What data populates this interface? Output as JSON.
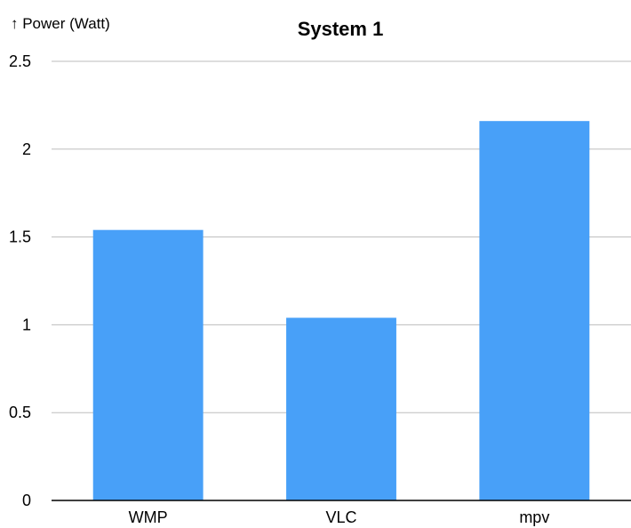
{
  "chart_data": {
    "type": "bar",
    "title": "System 1",
    "ylabel": "↑ Power (Watt)",
    "xlabel": "",
    "categories": [
      "WMP",
      "VLC",
      "mpv"
    ],
    "values": [
      1.54,
      1.04,
      2.16
    ],
    "ylim": [
      0,
      2.5
    ],
    "yticks": [
      0,
      0.5,
      1,
      1.5,
      2,
      2.5
    ],
    "ytick_labels": [
      "0",
      "0.5",
      "1",
      "1.5",
      "2",
      "2.5"
    ],
    "grid": true,
    "legend": "none",
    "bar_color": "#48a0f8"
  }
}
